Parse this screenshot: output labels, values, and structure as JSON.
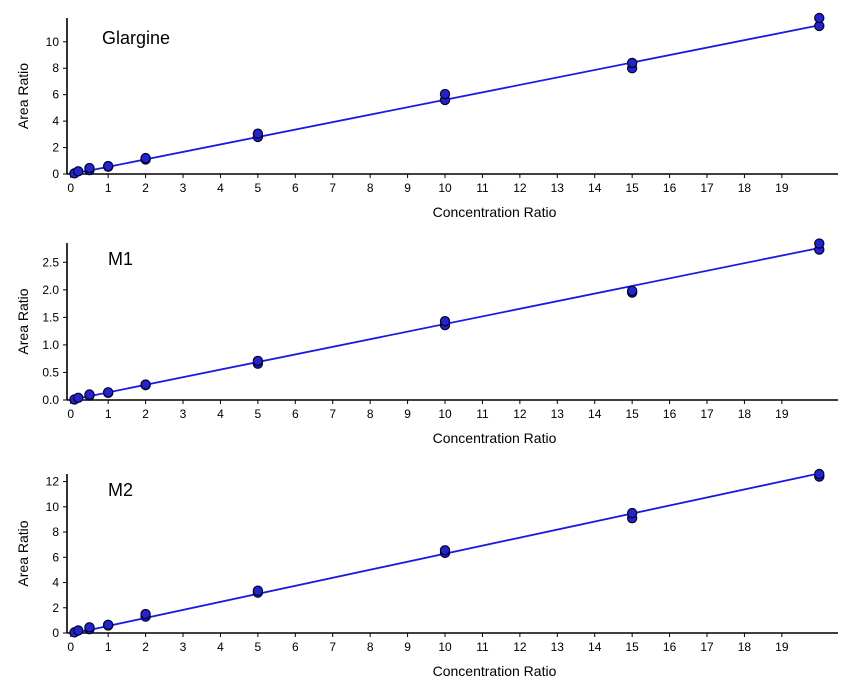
{
  "chart_data": [
    {
      "type": "scatter",
      "title": "Glargine",
      "xlabel": "Concentration Ratio",
      "ylabel": "Area Ratio",
      "xlim": [
        -0.1,
        20.5
      ],
      "ylim": [
        0,
        11.8
      ],
      "xticks": [
        0,
        1,
        2,
        3,
        4,
        5,
        6,
        7,
        8,
        9,
        10,
        11,
        12,
        13,
        14,
        15,
        16,
        17,
        18,
        19
      ],
      "yticks": [
        0,
        2,
        4,
        6,
        8,
        10
      ],
      "grid": false,
      "series": [
        {
          "points": [
            [
              0.1,
              0.05
            ],
            [
              0.2,
              0.2
            ],
            [
              0.5,
              0.3
            ],
            [
              0.5,
              0.45
            ],
            [
              1,
              0.55
            ],
            [
              1,
              0.6
            ],
            [
              2,
              1.1
            ],
            [
              2,
              1.2
            ],
            [
              5,
              2.8
            ],
            [
              5,
              3.05
            ],
            [
              10,
              5.6
            ],
            [
              10,
              6.05
            ],
            [
              15,
              8.0
            ],
            [
              15,
              8.4
            ],
            [
              20,
              11.2
            ],
            [
              20,
              11.8
            ]
          ],
          "fit": {
            "x": [
              0,
              20
            ],
            "y": [
              -0.02,
              11.25
            ]
          }
        }
      ],
      "colors": {
        "points": "#2424cc",
        "outline": "#000033",
        "line": "#1a1ae6"
      }
    },
    {
      "type": "scatter",
      "title": "M1",
      "xlabel": "Concentration Ratio",
      "ylabel": "Area Ratio",
      "xlim": [
        -0.1,
        20.5
      ],
      "ylim": [
        0,
        2.85
      ],
      "xticks": [
        0,
        1,
        2,
        3,
        4,
        5,
        6,
        7,
        8,
        9,
        10,
        11,
        12,
        13,
        14,
        15,
        16,
        17,
        18,
        19
      ],
      "yticks": [
        0,
        0.5,
        1.0,
        1.5,
        2.0,
        2.5
      ],
      "ytick_labels": [
        "0.0",
        "0.5",
        "1.0",
        "1.5",
        "2.0",
        "2.5"
      ],
      "grid": false,
      "series": [
        {
          "points": [
            [
              0.1,
              0.01
            ],
            [
              0.2,
              0.04
            ],
            [
              0.5,
              0.08
            ],
            [
              0.5,
              0.1
            ],
            [
              1,
              0.13
            ],
            [
              1,
              0.14
            ],
            [
              2,
              0.27
            ],
            [
              2,
              0.28
            ],
            [
              5,
              0.66
            ],
            [
              5,
              0.71
            ],
            [
              10,
              1.36
            ],
            [
              10,
              1.43
            ],
            [
              15,
              1.95
            ],
            [
              15,
              1.98
            ],
            [
              20,
              2.73
            ],
            [
              20,
              2.84
            ]
          ],
          "fit": {
            "x": [
              0,
              20
            ],
            "y": [
              0.0,
              2.76
            ]
          }
        }
      ],
      "colors": {
        "points": "#2424cc",
        "outline": "#000033",
        "line": "#1a1ae6"
      }
    },
    {
      "type": "scatter",
      "title": "M2",
      "xlabel": "Concentration Ratio",
      "ylabel": "Area Ratio",
      "xlim": [
        -0.1,
        20.5
      ],
      "ylim": [
        0,
        12.6
      ],
      "xticks": [
        0,
        1,
        2,
        3,
        4,
        5,
        6,
        7,
        8,
        9,
        10,
        11,
        12,
        13,
        14,
        15,
        16,
        17,
        18,
        19
      ],
      "yticks": [
        0,
        2,
        4,
        6,
        8,
        10,
        12
      ],
      "grid": false,
      "series": [
        {
          "points": [
            [
              0.1,
              0.05
            ],
            [
              0.2,
              0.2
            ],
            [
              0.5,
              0.3
            ],
            [
              0.5,
              0.45
            ],
            [
              1,
              0.6
            ],
            [
              1,
              0.65
            ],
            [
              2,
              1.3
            ],
            [
              2,
              1.5
            ],
            [
              5,
              3.2
            ],
            [
              5,
              3.35
            ],
            [
              10,
              6.35
            ],
            [
              10,
              6.55
            ],
            [
              15,
              9.1
            ],
            [
              15,
              9.5
            ],
            [
              20,
              12.4
            ],
            [
              20,
              12.6
            ]
          ],
          "fit": {
            "x": [
              0,
              20
            ],
            "y": [
              -0.08,
              12.65
            ]
          }
        }
      ],
      "colors": {
        "points": "#2424cc",
        "outline": "#000033",
        "line": "#1a1ae6"
      }
    }
  ]
}
